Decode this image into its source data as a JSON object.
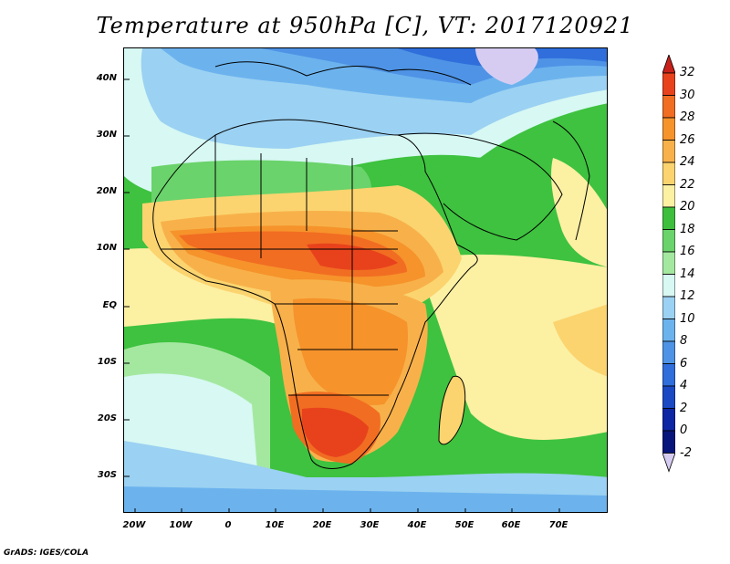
{
  "title": "Temperature at 950hPa [C], VT: 2017120921",
  "credit": "GrADS: IGES/COLA",
  "lat_labels": [
    "40N",
    "30N",
    "20N",
    "10N",
    "EQ",
    "10S",
    "20S",
    "30S"
  ],
  "lon_labels": [
    "20W",
    "10W",
    "0",
    "10E",
    "20E",
    "30E",
    "40E",
    "50E",
    "60E",
    "70E"
  ],
  "colorbar": {
    "labels": [
      "32",
      "30",
      "28",
      "26",
      "24",
      "22",
      "20",
      "18",
      "16",
      "14",
      "12",
      "10",
      "8",
      "6",
      "4",
      "2",
      "0",
      "-2"
    ],
    "colors": [
      "#c8201a",
      "#e8421c",
      "#f16d22",
      "#f6932b",
      "#f8b14a",
      "#fbd46f",
      "#fcf0a3",
      "#3dbf3d",
      "#6ad36b",
      "#a4e8a0",
      "#d7f8f3",
      "#9bd1f2",
      "#6cb3ee",
      "#4e93e5",
      "#2f6edb",
      "#1a49c3",
      "#0d26a3",
      "#08157a",
      "#d6ccf2"
    ]
  }
}
